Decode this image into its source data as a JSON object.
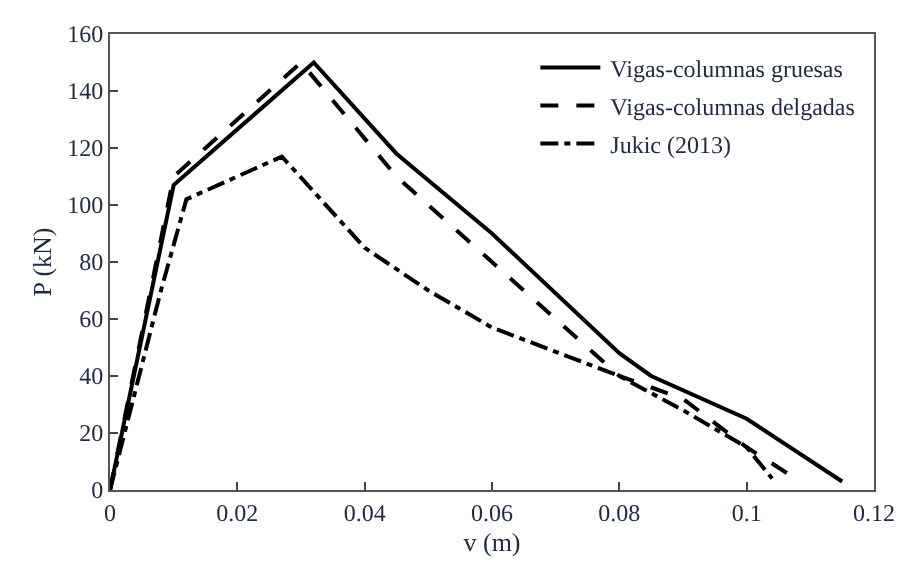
{
  "chart_data": {
    "type": "line",
    "xlabel": "v (m)",
    "ylabel": "P (kN)",
    "xlim": [
      0,
      0.12
    ],
    "xticks": [
      0,
      0.02,
      0.04,
      0.06,
      0.08,
      0.1,
      0.12
    ],
    "ylim": [
      0,
      160
    ],
    "yticks": [
      0,
      20,
      40,
      60,
      80,
      100,
      120,
      140,
      160
    ],
    "legend": "top right",
    "marker": "none",
    "series": [
      {
        "name": "Vigas-columnas gruesas",
        "color": "#000000",
        "line_style": "solid",
        "x": [
          0,
          0.01,
          0.032,
          0.045,
          0.06,
          0.08,
          0.085,
          0.1,
          0.115
        ],
        "values": [
          0,
          107,
          150,
          118,
          90,
          48,
          40,
          25,
          3
        ]
      },
      {
        "name": "Vigas-columnas delgadas",
        "color": "#000000",
        "line_style": "dashed",
        "x": [
          0,
          0.01,
          0.03,
          0.045,
          0.06,
          0.08,
          0.09,
          0.1,
          0.107
        ],
        "values": [
          0,
          110,
          150,
          110,
          80,
          40,
          32,
          15,
          5
        ]
      },
      {
        "name": "Jukic (2013)",
        "color": "#000000",
        "line_style": "dashdot",
        "x": [
          0,
          0.008,
          0.012,
          0.027,
          0.04,
          0.05,
          0.06,
          0.08,
          0.09,
          0.1,
          0.104
        ],
        "values": [
          0,
          70,
          102,
          117,
          85,
          70,
          57,
          40,
          28,
          15,
          4
        ]
      }
    ]
  }
}
